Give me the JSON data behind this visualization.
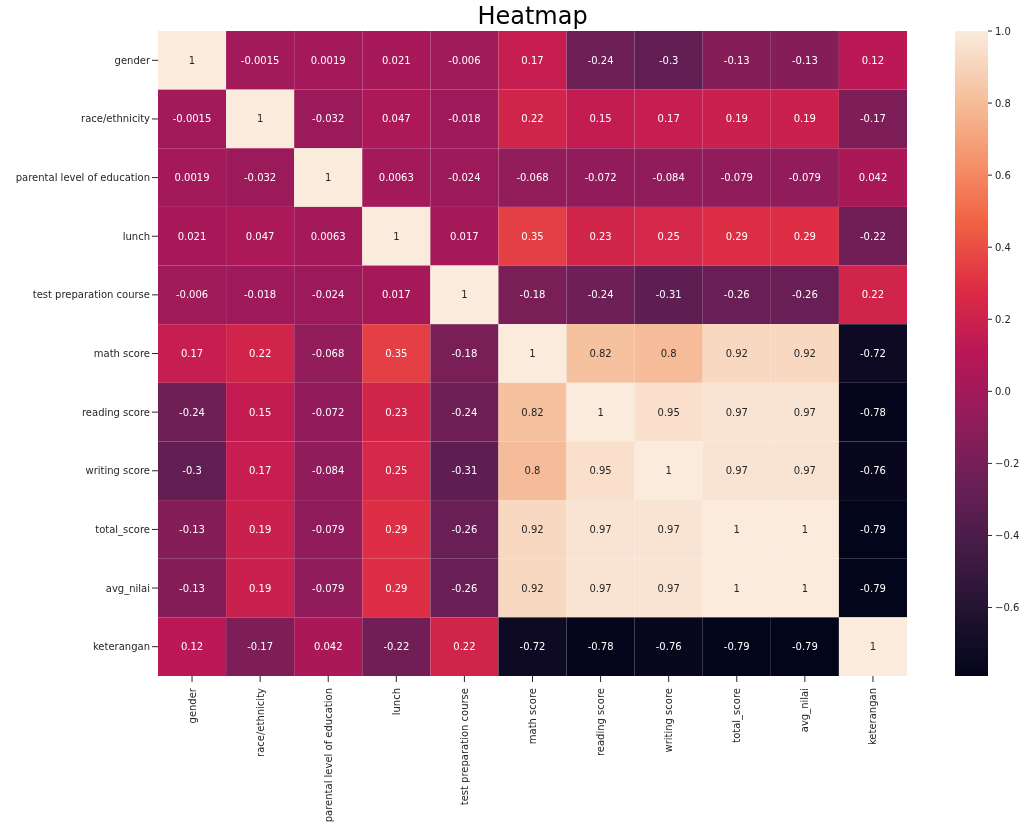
{
  "chart_data": {
    "type": "heatmap",
    "title": "Heatmap",
    "categories": [
      "gender",
      "race/ethnicity",
      "parental level of education",
      "lunch",
      "test preparation course",
      "math score",
      "reading score",
      "writing score",
      "total_score",
      "avg_nilai",
      "keterangan"
    ],
    "y_categories": [
      "gender",
      "race/ethnicity",
      "parental level of education",
      "lunch",
      "test preparation course",
      "math score",
      "reading score",
      "writing score",
      "total_score",
      "avg_nilai",
      "keterangan"
    ],
    "cells": [
      [
        1,
        -0.0015,
        0.0019,
        0.021,
        -0.006,
        0.17,
        -0.24,
        -0.3,
        -0.13,
        -0.13,
        0.12
      ],
      [
        -0.0015,
        1,
        -0.032,
        0.047,
        -0.018,
        0.22,
        0.15,
        0.17,
        0.19,
        0.19,
        -0.17
      ],
      [
        0.0019,
        -0.032,
        1,
        0.0063,
        -0.024,
        -0.068,
        -0.072,
        -0.084,
        -0.079,
        -0.079,
        0.042
      ],
      [
        0.021,
        0.047,
        0.0063,
        1,
        0.017,
        0.35,
        0.23,
        0.25,
        0.29,
        0.29,
        -0.22
      ],
      [
        -0.006,
        -0.018,
        -0.024,
        0.017,
        1,
        -0.18,
        -0.24,
        -0.31,
        -0.26,
        -0.26,
        0.22
      ],
      [
        0.17,
        0.22,
        -0.068,
        0.35,
        -0.18,
        1,
        0.82,
        0.8,
        0.92,
        0.92,
        -0.72
      ],
      [
        -0.24,
        0.15,
        -0.072,
        0.23,
        -0.24,
        0.82,
        1,
        0.95,
        0.97,
        0.97,
        -0.78
      ],
      [
        -0.3,
        0.17,
        -0.084,
        0.25,
        -0.31,
        0.8,
        0.95,
        1,
        0.97,
        0.97,
        -0.76
      ],
      [
        -0.13,
        0.19,
        -0.079,
        0.29,
        -0.26,
        0.92,
        0.97,
        0.97,
        1,
        1,
        -0.79
      ],
      [
        -0.13,
        0.19,
        -0.079,
        0.29,
        -0.26,
        0.92,
        0.97,
        0.97,
        1,
        1,
        -0.79
      ],
      [
        0.12,
        -0.17,
        0.042,
        -0.22,
        0.22,
        -0.72,
        -0.78,
        -0.76,
        -0.79,
        -0.79,
        1
      ]
    ],
    "data_labels": true,
    "clim": [
      -0.79,
      1
    ],
    "cticks": [
      {
        "value": -0.6,
        "label": "−0.6"
      },
      {
        "value": -0.4,
        "label": "−0.4"
      },
      {
        "value": -0.2,
        "label": "−0.2"
      },
      {
        "value": 0,
        "label": "0.0"
      },
      {
        "value": 0.2,
        "label": "0.2"
      },
      {
        "value": 0.4,
        "label": "0.4"
      },
      {
        "value": 0.6,
        "label": "0.6"
      },
      {
        "value": 0.8,
        "label": "0.8"
      },
      {
        "value": 1,
        "label": "1.0"
      }
    ]
  }
}
